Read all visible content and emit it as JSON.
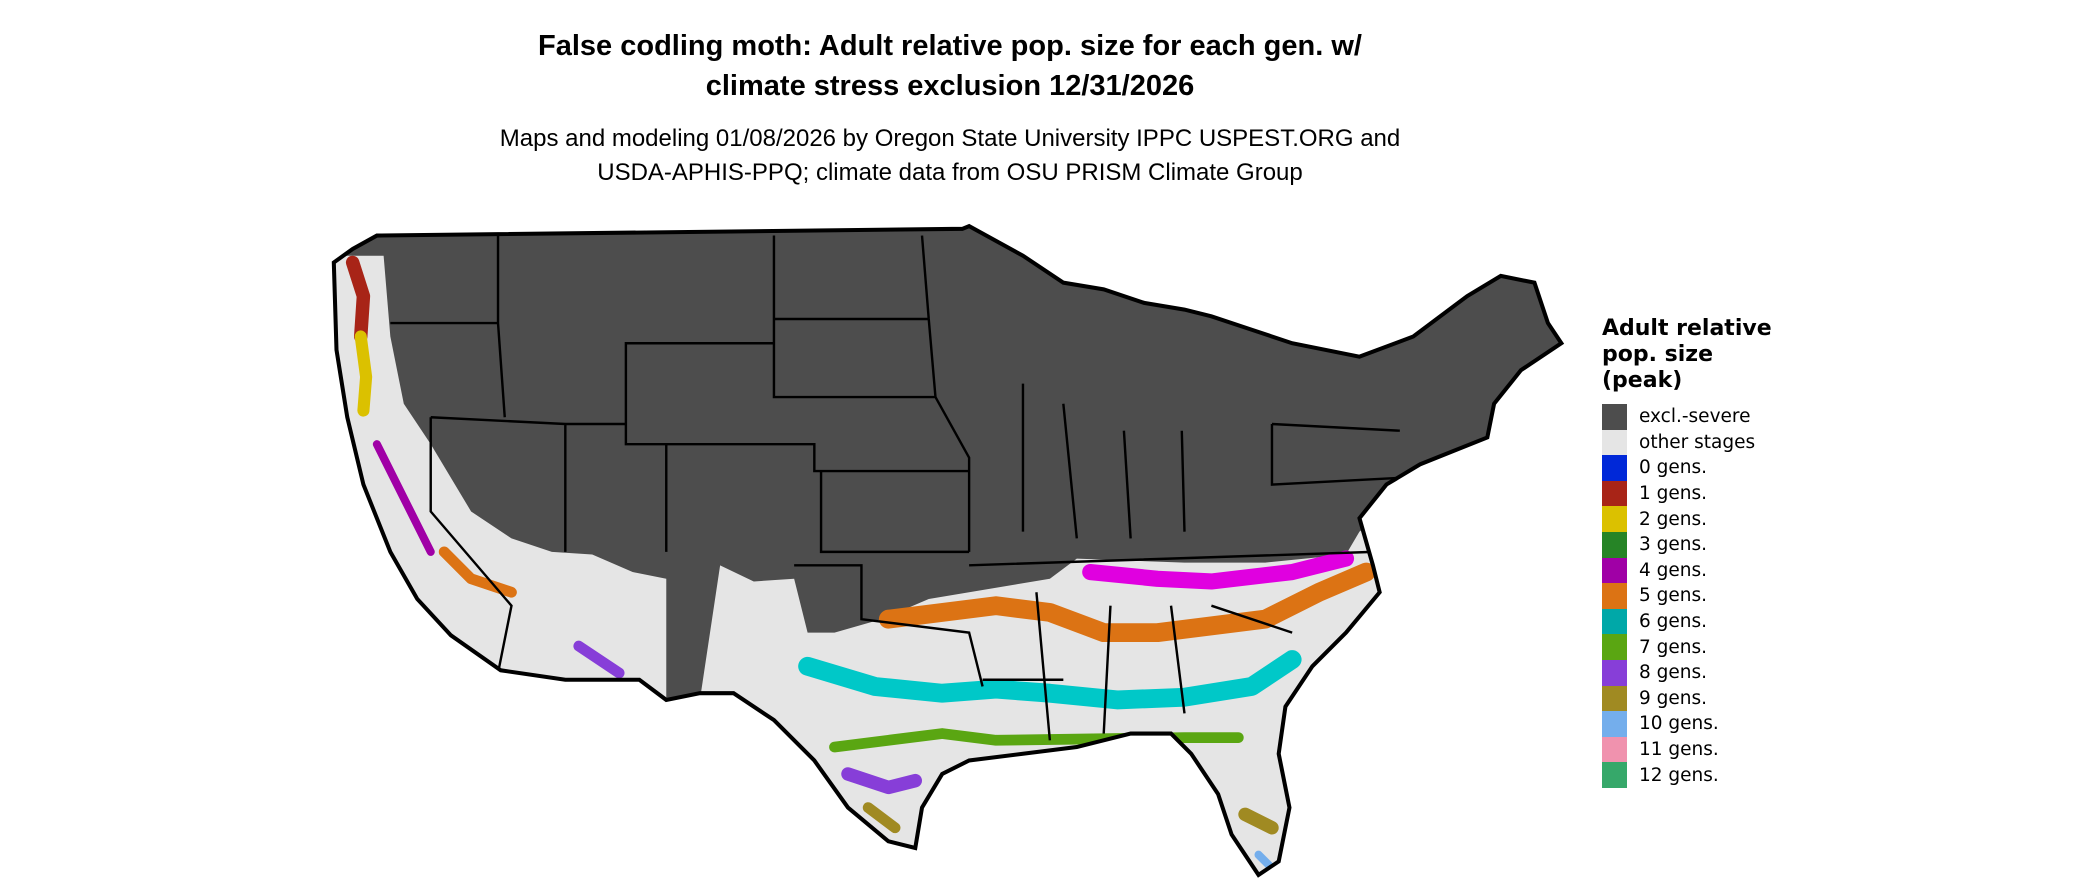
{
  "title": {
    "line1": "False codling moth: Adult relative pop. size for each gen. w/",
    "line2": "climate stress exclusion 12/31/2026"
  },
  "subtitle": {
    "line1": "Maps and modeling 01/08/2026 by Oregon State University IPPC USPEST.ORG and",
    "line2": "USDA-APHIS-PPQ; climate data from OSU PRISM Climate Group"
  },
  "legend": {
    "title_lines": [
      "Adult relative",
      "pop. size",
      "(peak)"
    ],
    "items": [
      {
        "label": "excl.-severe",
        "color": "#4d4d4d"
      },
      {
        "label": "other stages",
        "color": "#e5e5e5"
      },
      {
        "label": "0 gens.",
        "color": "#0028d8"
      },
      {
        "label": "1 gens.",
        "color": "#a82417"
      },
      {
        "label": "2 gens.",
        "color": "#dbc100"
      },
      {
        "label": "3 gens.",
        "color": "#268426"
      },
      {
        "label": "4 gens.",
        "color": "#a000a6"
      },
      {
        "label": "5 gens.",
        "color": "#dc7314"
      },
      {
        "label": "6 gens.",
        "color": "#00a8a8"
      },
      {
        "label": "7 gens.",
        "color": "#5aa612"
      },
      {
        "label": "8 gens.",
        "color": "#873ed8"
      },
      {
        "label": "9 gens.",
        "color": "#a08a22"
      },
      {
        "label": "10 gens.",
        "color": "#74aeec"
      },
      {
        "label": "11 gens.",
        "color": "#f092ae"
      },
      {
        "label": "12 gens.",
        "color": "#36a86a"
      }
    ]
  }
}
